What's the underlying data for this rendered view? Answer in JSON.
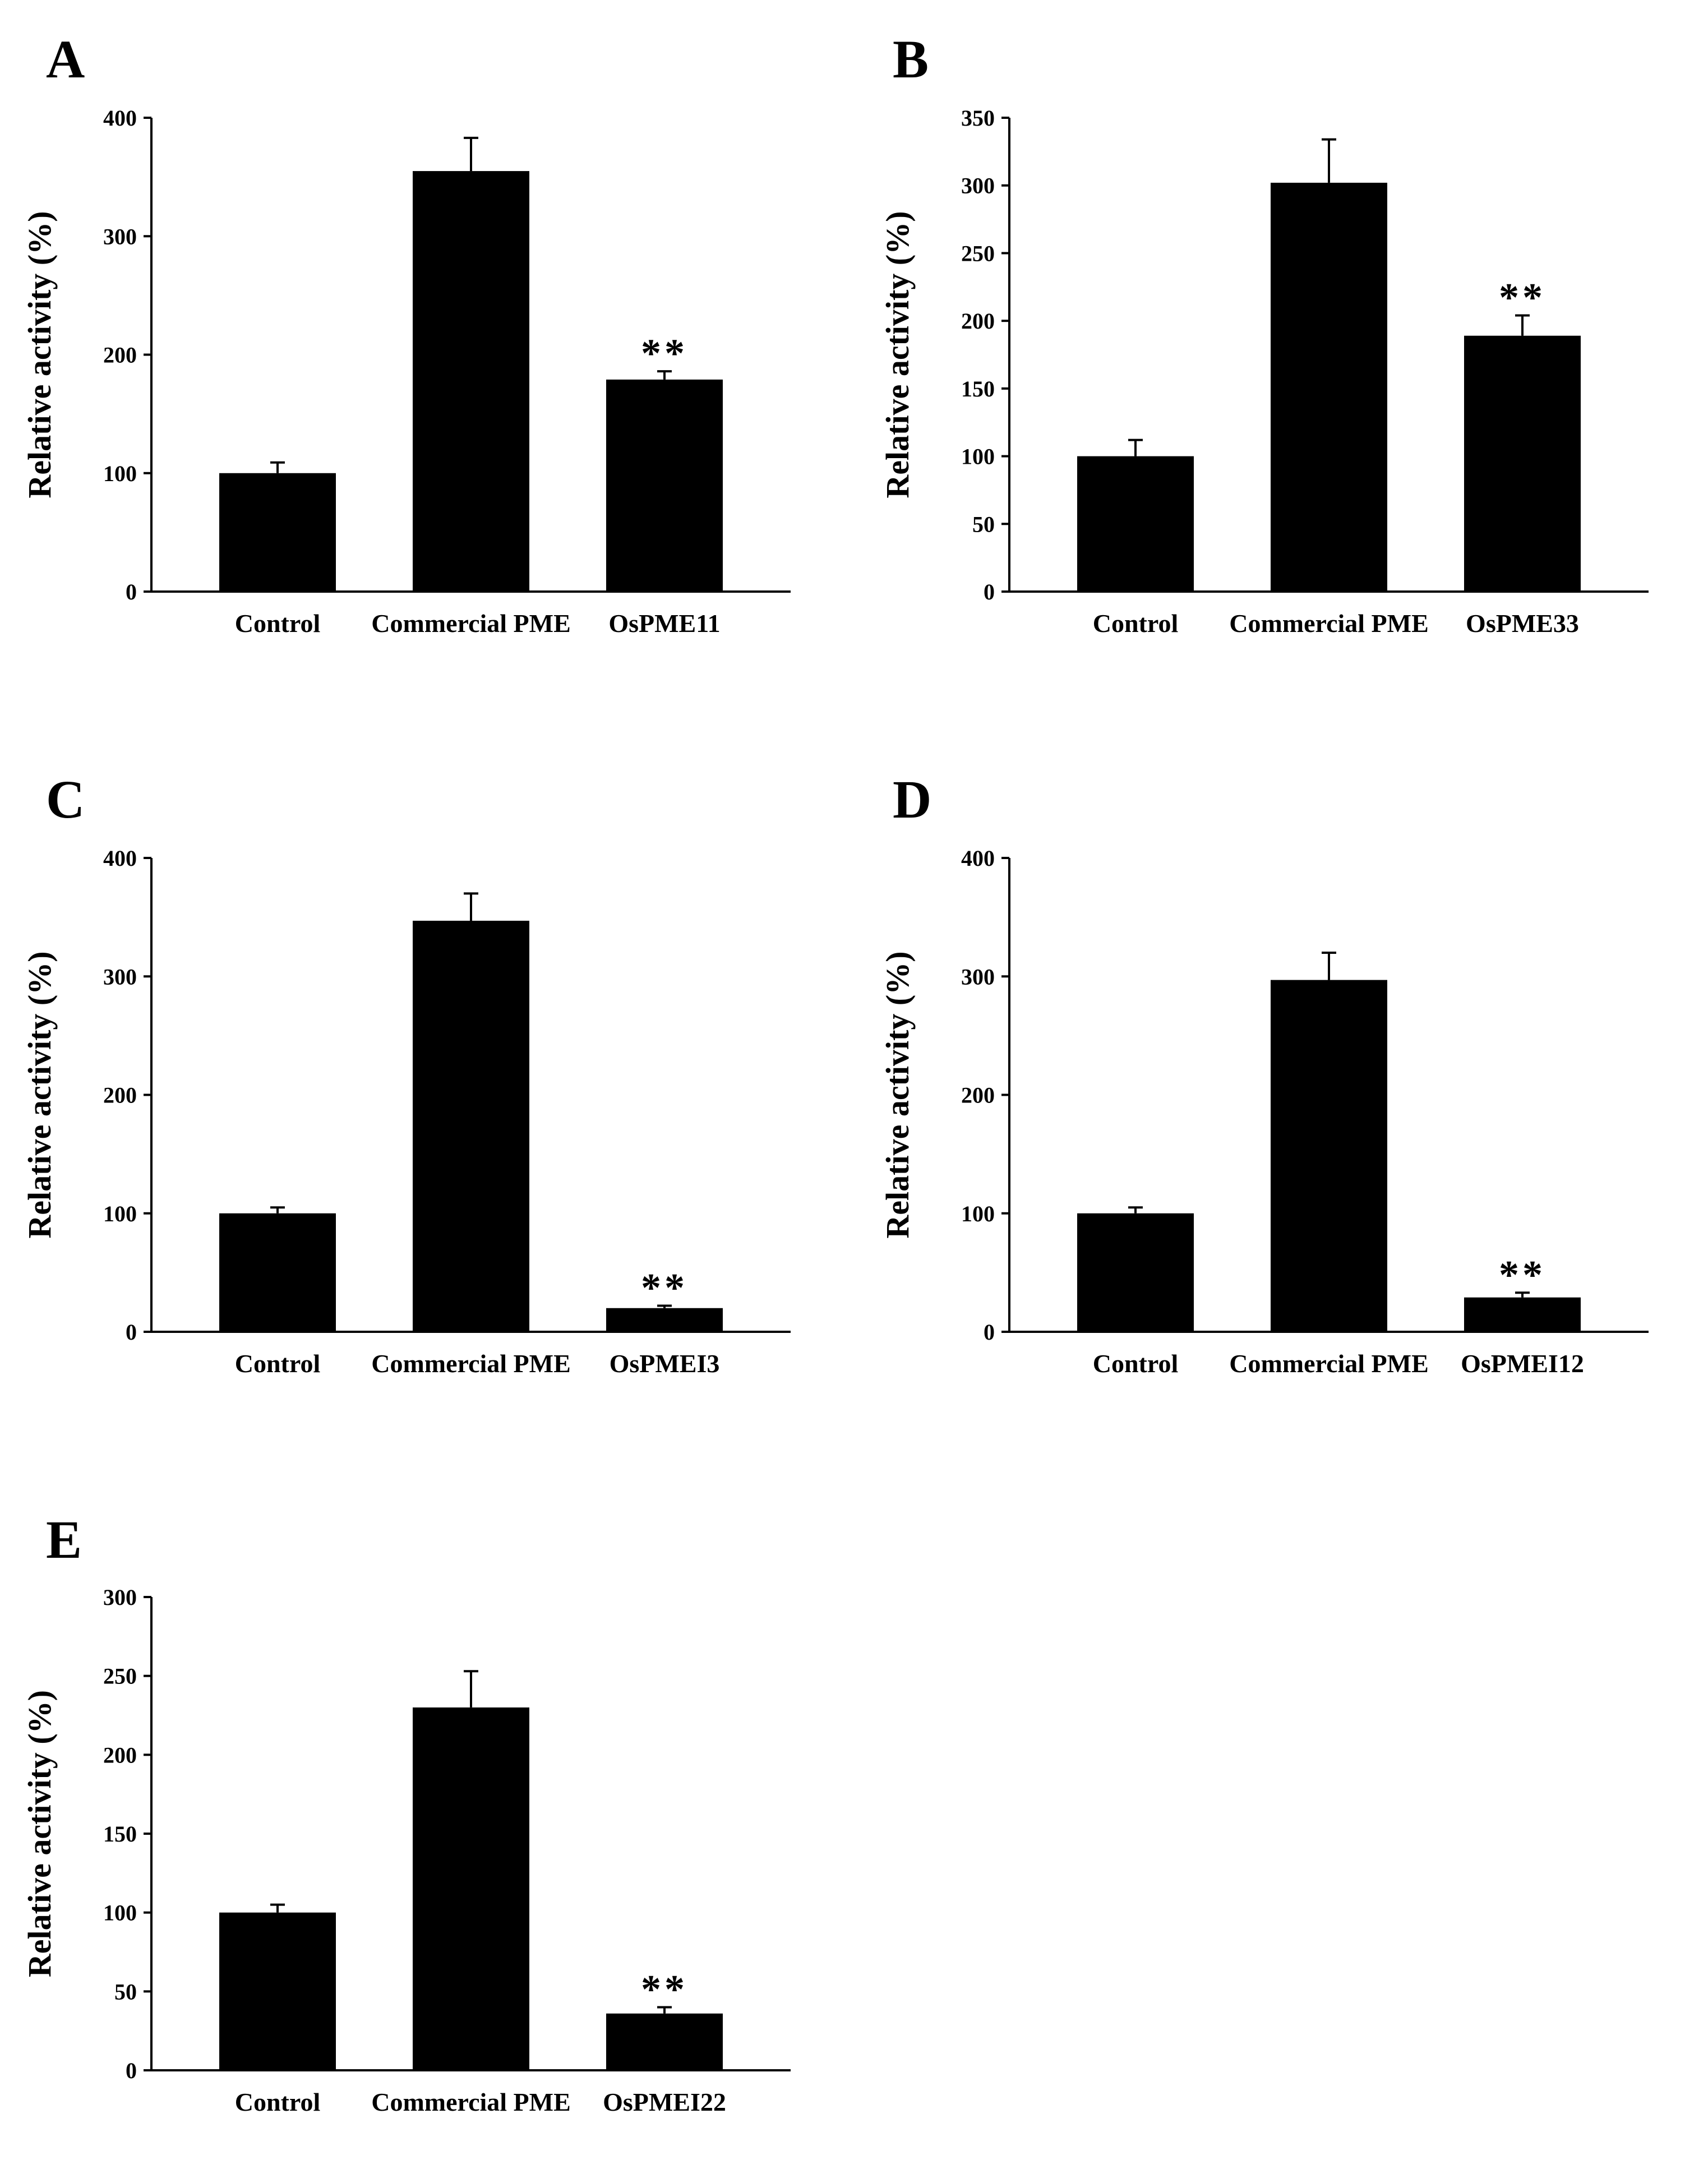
{
  "chart_data": [
    {
      "panel": "A",
      "type": "bar",
      "title": "",
      "xlabel": "",
      "ylabel": "Relative activity (%)",
      "ylim": [
        0,
        400
      ],
      "yticks": [
        0,
        100,
        200,
        300,
        400
      ],
      "categories": [
        "Control",
        "Commercial PME",
        "OsPME11"
      ],
      "values": [
        100,
        355,
        179
      ],
      "errors": [
        9,
        28,
        7
      ],
      "annotations": [
        {
          "category": "OsPME11",
          "text": "**"
        }
      ]
    },
    {
      "panel": "B",
      "type": "bar",
      "title": "",
      "xlabel": "",
      "ylabel": "Relative activity (%)",
      "ylim": [
        0,
        350
      ],
      "yticks": [
        0,
        50,
        100,
        150,
        200,
        250,
        300,
        350
      ],
      "categories": [
        "Control",
        "Commercial PME",
        "OsPME33"
      ],
      "values": [
        100,
        302,
        189
      ],
      "errors": [
        12,
        32,
        15
      ],
      "annotations": [
        {
          "category": "OsPME33",
          "text": "**"
        }
      ]
    },
    {
      "panel": "C",
      "type": "bar",
      "title": "",
      "xlabel": "",
      "ylabel": "Relative activity (%)",
      "ylim": [
        0,
        400
      ],
      "yticks": [
        0,
        100,
        200,
        300,
        400
      ],
      "categories": [
        "Control",
        "Commercial PME",
        "OsPMEI3"
      ],
      "values": [
        100,
        347,
        20
      ],
      "errors": [
        5,
        23,
        2
      ],
      "annotations": [
        {
          "category": "OsPMEI3",
          "text": "**"
        }
      ]
    },
    {
      "panel": "D",
      "type": "bar",
      "title": "",
      "xlabel": "",
      "ylabel": "Relative activity (%)",
      "ylim": [
        0,
        400
      ],
      "yticks": [
        0,
        100,
        200,
        300,
        400
      ],
      "categories": [
        "Control",
        "Commercial PME",
        "OsPMEI12"
      ],
      "values": [
        100,
        297,
        29
      ],
      "errors": [
        5,
        23,
        4
      ],
      "annotations": [
        {
          "category": "OsPMEI12",
          "text": "**"
        }
      ]
    },
    {
      "panel": "E",
      "type": "bar",
      "title": "",
      "xlabel": "",
      "ylabel": "Relative activity (%)",
      "ylim": [
        0,
        300
      ],
      "yticks": [
        0,
        50,
        100,
        150,
        200,
        250,
        300
      ],
      "categories": [
        "Control",
        "Commercial PME",
        "OsPMEI22"
      ],
      "values": [
        100,
        230,
        36
      ],
      "errors": [
        5,
        23,
        4
      ],
      "annotations": [
        {
          "category": "OsPMEI22",
          "text": "**"
        }
      ]
    }
  ],
  "colors": {
    "bar": "#000000",
    "axis": "#000000",
    "background": "#ffffff"
  }
}
